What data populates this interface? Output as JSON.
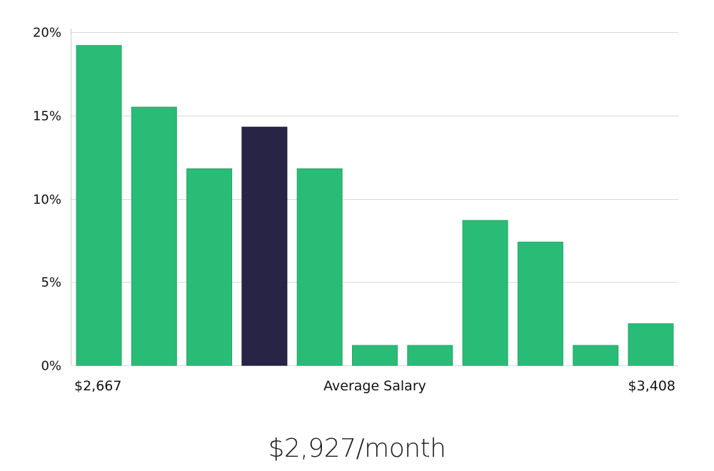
{
  "chart_data": {
    "type": "bar",
    "title": "",
    "xlabel": "Average Salary",
    "ylabel": "",
    "ylim": [
      0,
      20
    ],
    "y_ticks": [
      0,
      5,
      10,
      15,
      20
    ],
    "y_tick_labels": [
      "0%",
      "5%",
      "10%",
      "15%",
      "20%"
    ],
    "grid": true,
    "x_min_label": "$2,667",
    "x_max_label": "$3,408",
    "values": [
      19.2,
      15.5,
      11.8,
      14.3,
      11.8,
      1.2,
      1.2,
      8.7,
      7.4,
      1.2,
      2.5
    ],
    "highlight_index": 3,
    "colors": {
      "bar": "#29bc76",
      "highlight": "#282445"
    }
  },
  "summary": {
    "value_label": "$2,927/month"
  }
}
